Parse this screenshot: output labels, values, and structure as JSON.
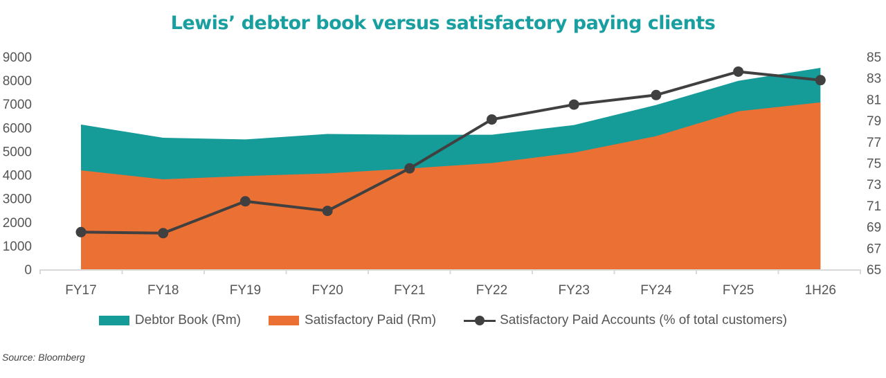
{
  "chart_data": {
    "type": "area",
    "title": "Lewis’ debtor book versus satisfactory paying clients",
    "categories": [
      "FY17",
      "FY18",
      "FY19",
      "FY20",
      "FY21",
      "FY22",
      "FY23",
      "FY24",
      "FY25",
      "1H26"
    ],
    "series": [
      {
        "name": "Debtor Book (Rm)",
        "type": "area",
        "axis": "left",
        "color": "#159b98",
        "values": [
          6130,
          5570,
          5500,
          5730,
          5700,
          5700,
          6110,
          6960,
          7980,
          8530
        ]
      },
      {
        "name": "Satisfactory Paid (Rm)",
        "type": "area",
        "axis": "left",
        "color": "#ea7033",
        "values": [
          4190,
          3810,
          3950,
          4060,
          4270,
          4500,
          4940,
          5640,
          6690,
          7070
        ]
      },
      {
        "name": "Satisfactory Paid Accounts (% of total customers)",
        "type": "line",
        "axis": "right",
        "color": "#404040",
        "values": [
          68.5,
          68.4,
          71.4,
          70.5,
          74.5,
          79.1,
          80.5,
          81.4,
          83.6,
          82.8
        ]
      }
    ],
    "y_left": {
      "range": [
        0,
        9000
      ],
      "ticks": [
        "0",
        "1000",
        "2000",
        "3000",
        "4000",
        "5000",
        "6000",
        "7000",
        "8000",
        "9000"
      ]
    },
    "y_right": {
      "range": [
        65,
        85
      ],
      "ticks": [
        "65",
        "67",
        "69",
        "71",
        "73",
        "75",
        "77",
        "79",
        "81",
        "83",
        "85"
      ]
    },
    "grid": false,
    "legend": "bottom"
  },
  "source": "Source: Bloomberg"
}
